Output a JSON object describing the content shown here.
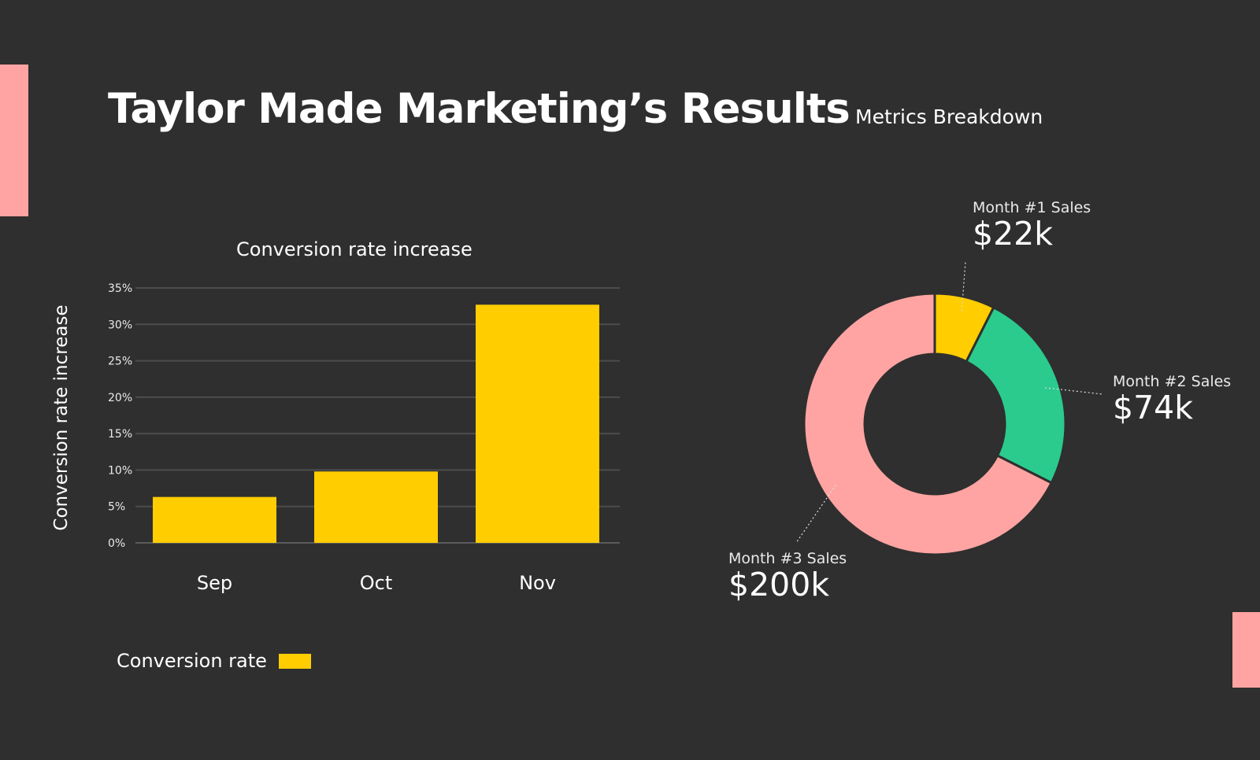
{
  "page": {
    "title": "Taylor Made Marketing’s Results"
  },
  "colors": {
    "background": "#2f2f2f",
    "accent": "#ffa4a2",
    "bar": "#ffcd00",
    "month1": "#ffcd00",
    "month2": "#2bcb8e",
    "month3": "#ffa4a2"
  },
  "chart_data": [
    {
      "type": "bar",
      "title": "Conversion rate increase",
      "xlabel": "",
      "ylabel": "Conversion rate increase",
      "categories": [
        "Sep",
        "Oct",
        "Nov"
      ],
      "series": [
        {
          "name": "Conversion rate",
          "values": [
            6.3,
            9.8,
            32.7
          ]
        }
      ],
      "ylim": [
        0,
        35
      ],
      "yticks": [
        "0%",
        "5%",
        "10%",
        "15%",
        "20%",
        "25%",
        "30%",
        "35%"
      ],
      "grid": true,
      "legend": "bottom-left"
    },
    {
      "type": "pie",
      "title": "Metrics Breakdown",
      "donut": true,
      "slices": [
        {
          "label": "Month #1 Sales",
          "value": 22,
          "display": "$22k",
          "color": "#ffcd00"
        },
        {
          "label": "Month #2 Sales",
          "value": 74,
          "display": "$74k",
          "color": "#2bcb8e"
        },
        {
          "label": "Month #3 Sales",
          "value": 200,
          "display": "$200k",
          "color": "#ffa4a2"
        }
      ]
    }
  ]
}
